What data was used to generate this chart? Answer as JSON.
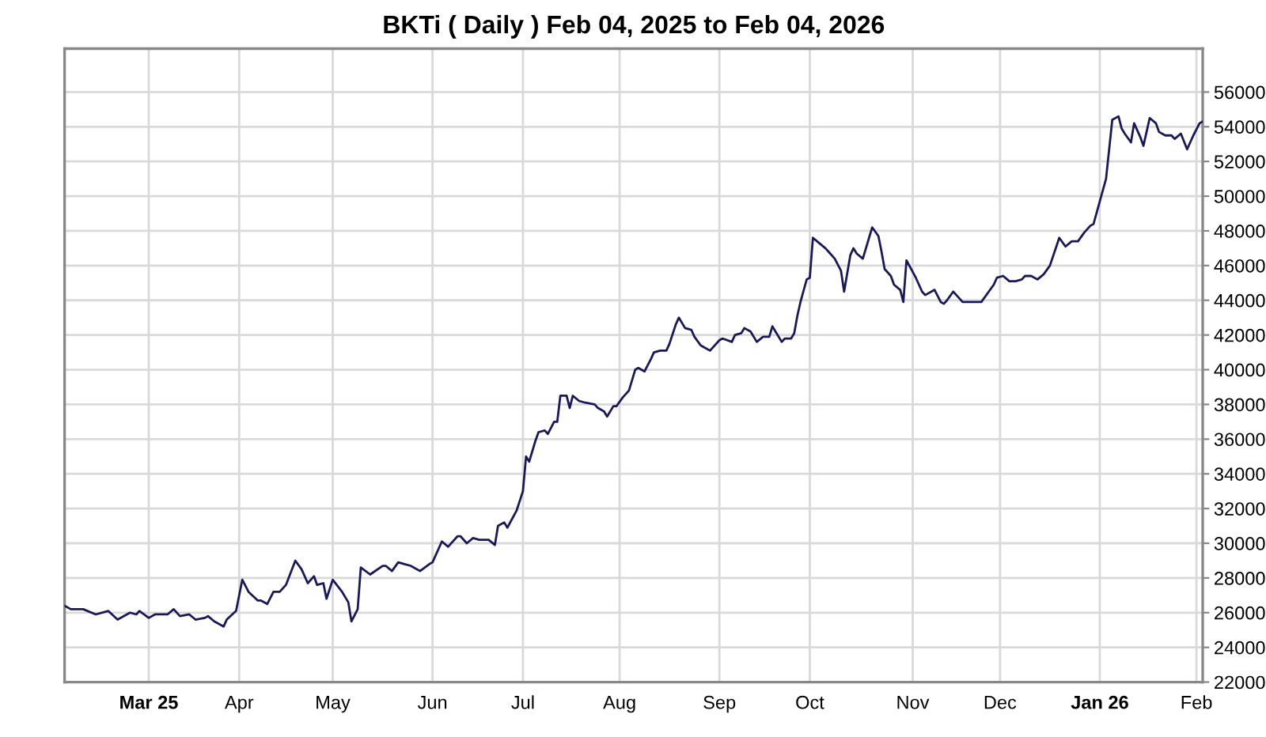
{
  "chart_data": {
    "type": "line",
    "title": "BKTi ( Daily ) Feb 04, 2025 to Feb 04, 2026",
    "x": [
      "2025-02-04",
      "2025-02-06",
      "2025-02-10",
      "2025-02-14",
      "2025-02-18",
      "2025-02-21",
      "2025-02-25",
      "2025-02-27",
      "2025-02-28",
      "2025-03-03",
      "2025-03-05",
      "2025-03-07",
      "2025-03-09",
      "2025-03-11",
      "2025-03-13",
      "2025-03-16",
      "2025-03-18",
      "2025-03-21",
      "2025-03-22",
      "2025-03-24",
      "2025-03-27",
      "2025-03-28",
      "2025-03-31",
      "2025-04-02",
      "2025-04-04",
      "2025-04-07",
      "2025-04-08",
      "2025-04-10",
      "2025-04-12",
      "2025-04-14",
      "2025-04-16",
      "2025-04-19",
      "2025-04-21",
      "2025-04-23",
      "2025-04-25",
      "2025-04-26",
      "2025-04-28",
      "2025-04-29",
      "2025-05-01",
      "2025-05-04",
      "2025-05-06",
      "2025-05-07",
      "2025-05-09",
      "2025-05-10",
      "2025-05-13",
      "2025-05-17",
      "2025-05-18",
      "2025-05-20",
      "2025-05-22",
      "2025-05-26",
      "2025-05-29",
      "2025-06-01",
      "2025-06-02",
      "2025-06-05",
      "2025-06-07",
      "2025-06-10",
      "2025-06-11",
      "2025-06-13",
      "2025-06-15",
      "2025-06-17",
      "2025-06-18",
      "2025-06-20",
      "2025-06-22",
      "2025-06-23",
      "2025-06-25",
      "2025-06-26",
      "2025-06-29",
      "2025-07-01",
      "2025-07-02",
      "2025-07-03",
      "2025-07-05",
      "2025-07-06",
      "2025-07-08",
      "2025-07-09",
      "2025-07-11",
      "2025-07-12",
      "2025-07-13",
      "2025-07-15",
      "2025-07-16",
      "2025-07-17",
      "2025-07-19",
      "2025-07-21",
      "2025-07-24",
      "2025-07-25",
      "2025-07-27",
      "2025-07-28",
      "2025-07-30",
      "2025-07-31",
      "2025-08-02",
      "2025-08-04",
      "2025-08-06",
      "2025-08-07",
      "2025-08-09",
      "2025-08-11",
      "2025-08-12",
      "2025-08-14",
      "2025-08-16",
      "2025-08-17",
      "2025-08-19",
      "2025-08-20",
      "2025-08-22",
      "2025-08-24",
      "2025-08-25",
      "2025-08-27",
      "2025-08-28",
      "2025-08-30",
      "2025-09-02",
      "2025-09-03",
      "2025-09-06",
      "2025-09-07",
      "2025-09-09",
      "2025-09-10",
      "2025-09-12",
      "2025-09-14",
      "2025-09-16",
      "2025-09-18",
      "2025-09-19",
      "2025-09-20",
      "2025-09-22",
      "2025-09-23",
      "2025-09-25",
      "2025-09-26",
      "2025-09-27",
      "2025-09-28",
      "2025-09-30",
      "2025-10-01",
      "2025-10-02",
      "2025-10-04",
      "2025-10-06",
      "2025-10-07",
      "2025-10-09",
      "2025-10-11",
      "2025-10-12",
      "2025-10-14",
      "2025-10-15",
      "2025-10-16",
      "2025-10-18",
      "2025-10-20",
      "2025-10-21",
      "2025-10-23",
      "2025-10-24",
      "2025-10-25",
      "2025-10-27",
      "2025-10-28",
      "2025-10-30",
      "2025-10-31",
      "2025-11-01",
      "2025-11-04",
      "2025-11-06",
      "2025-11-07",
      "2025-11-09",
      "2025-11-10",
      "2025-11-12",
      "2025-11-13",
      "2025-11-14",
      "2025-11-16",
      "2025-11-17",
      "2025-11-19",
      "2025-11-21",
      "2025-11-23",
      "2025-11-25",
      "2025-11-29",
      "2025-11-30",
      "2025-12-02",
      "2025-12-04",
      "2025-12-06",
      "2025-12-08",
      "2025-12-09",
      "2025-12-11",
      "2025-12-13",
      "2025-12-15",
      "2025-12-17",
      "2025-12-20",
      "2025-12-22",
      "2025-12-24",
      "2025-12-26",
      "2025-12-28",
      "2025-12-30",
      "2025-12-31",
      "2026-01-02",
      "2026-01-04",
      "2026-01-06",
      "2026-01-08",
      "2026-01-09",
      "2026-01-10",
      "2026-01-12",
      "2026-01-13",
      "2026-01-15",
      "2026-01-16",
      "2026-01-18",
      "2026-01-20",
      "2026-01-21",
      "2026-01-23",
      "2026-01-25",
      "2026-01-26",
      "2026-01-28",
      "2026-01-30",
      "2026-02-01",
      "2026-02-03",
      "2026-02-04"
    ],
    "series": [
      {
        "color": "#18185a",
        "values": [
          26400,
          26200,
          26200,
          25900,
          26100,
          25600,
          26000,
          25900,
          26100,
          25700,
          25900,
          25900,
          25900,
          26200,
          25800,
          25900,
          25600,
          25700,
          25800,
          25500,
          25200,
          25600,
          26100,
          27900,
          27200,
          26700,
          26700,
          26500,
          27200,
          27200,
          27600,
          29000,
          28500,
          27700,
          28100,
          27600,
          27700,
          26800,
          27900,
          27200,
          26600,
          25500,
          26200,
          28600,
          28200,
          28700,
          28700,
          28400,
          28900,
          28700,
          28400,
          28800,
          28900,
          30100,
          29800,
          30400,
          30400,
          30000,
          30300,
          30200,
          30200,
          30200,
          29900,
          31000,
          31200,
          30900,
          31900,
          33000,
          35000,
          34700,
          35900,
          36400,
          36500,
          36300,
          37000,
          37000,
          38500,
          38500,
          37800,
          38500,
          38200,
          38100,
          38000,
          37800,
          37600,
          37300,
          37900,
          37900,
          38400,
          38800,
          40000,
          40100,
          39900,
          40600,
          41000,
          41100,
          41100,
          41500,
          42600,
          43000,
          42400,
          42300,
          41900,
          41400,
          41300,
          41100,
          41700,
          41800,
          41600,
          42000,
          42100,
          42400,
          42200,
          41600,
          41900,
          41900,
          42500,
          42200,
          41600,
          41800,
          41800,
          42100,
          43100,
          43900,
          45200,
          45300,
          47600,
          47300,
          47000,
          46800,
          46400,
          45700,
          44500,
          46600,
          47000,
          46700,
          46400,
          47600,
          48200,
          47700,
          46800,
          45800,
          45400,
          44900,
          44600,
          43900,
          46300,
          45300,
          44500,
          44300,
          44500,
          44600,
          43900,
          43800,
          44000,
          44500,
          44300,
          43900,
          43900,
          43900,
          43900,
          44900,
          45300,
          45400,
          45100,
          45100,
          45200,
          45400,
          45400,
          45200,
          45500,
          46000,
          47600,
          47100,
          47400,
          47400,
          47900,
          48300,
          48400,
          49700,
          51000,
          54400,
          54600,
          53900,
          53600,
          53100,
          54200,
          53400,
          52900,
          54500,
          54200,
          53700,
          53500,
          53500,
          53300,
          53600,
          52700,
          53500,
          54200,
          54300
        ]
      }
    ],
    "xlim": [
      "2025-02-04",
      "2026-02-04"
    ],
    "ylim": [
      22000,
      58500
    ],
    "xticks": [
      {
        "value": "2025-03-03",
        "label": "Mar 25"
      },
      {
        "value": "2025-04-01",
        "label": "Apr"
      },
      {
        "value": "2025-05-01",
        "label": "May"
      },
      {
        "value": "2025-06-02",
        "label": "Jun"
      },
      {
        "value": "2025-07-01",
        "label": "Jul"
      },
      {
        "value": "2025-08-01",
        "label": "Aug"
      },
      {
        "value": "2025-09-02",
        "label": "Sep"
      },
      {
        "value": "2025-10-01",
        "label": "Oct"
      },
      {
        "value": "2025-11-03",
        "label": "Nov"
      },
      {
        "value": "2025-12-01",
        "label": "Dec"
      },
      {
        "value": "2026-01-02",
        "label": "Jan 26"
      },
      {
        "value": "2026-02-02",
        "label": "Feb"
      }
    ],
    "yticks": [
      22000,
      24000,
      26000,
      28000,
      30000,
      32000,
      34000,
      36000,
      38000,
      40000,
      42000,
      44000,
      46000,
      48000,
      50000,
      52000,
      54000,
      56000
    ],
    "grid": true,
    "line_style": "solid"
  }
}
